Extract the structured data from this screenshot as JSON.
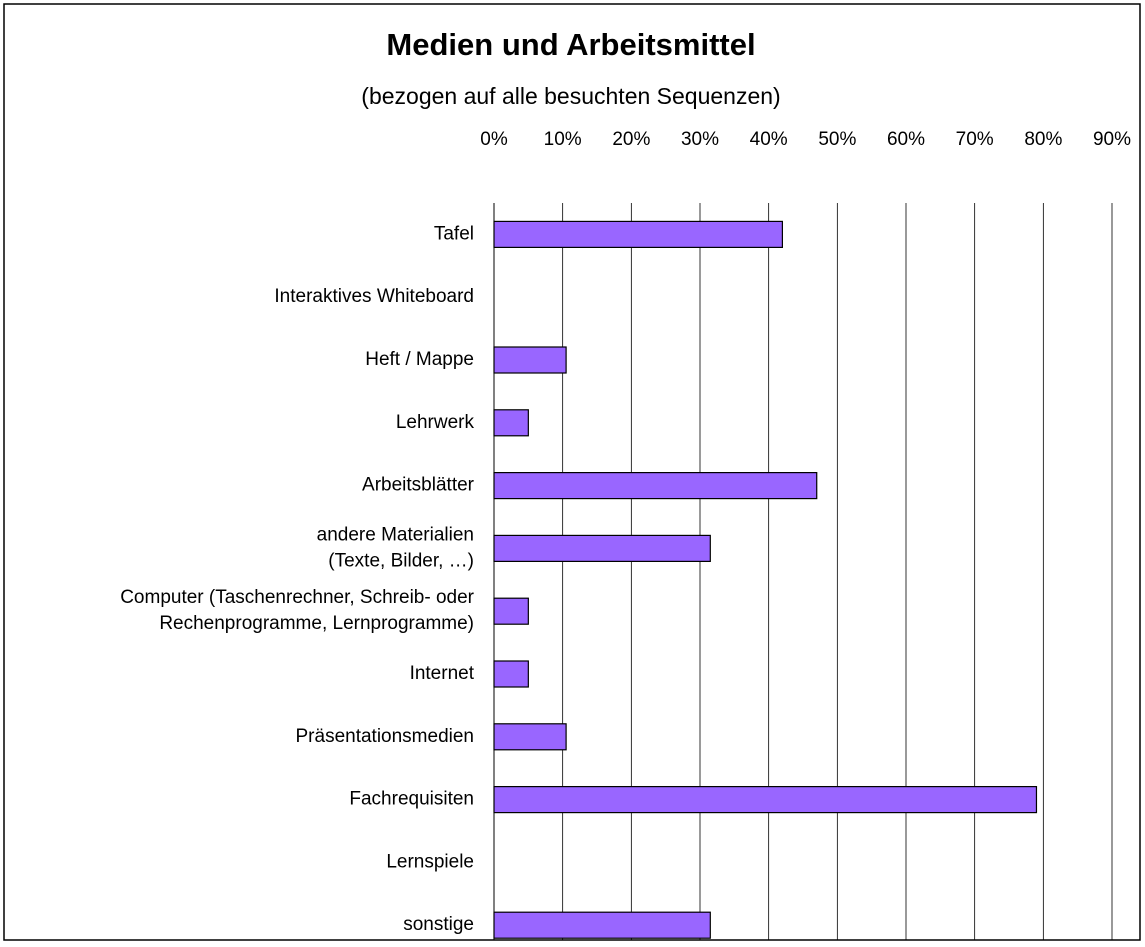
{
  "chart_data": {
    "type": "hbar",
    "title": "Medien und Arbeitsmittel",
    "subtitle": "(bezogen auf alle besuchten Sequenzen)",
    "categories": [
      "Tafel",
      "Interaktives Whiteboard",
      "Heft / Mappe",
      "Lehrwerk",
      "Arbeitsblätter",
      [
        "andere Materialien",
        "(Texte, Bilder, …)"
      ],
      [
        "Computer (Taschenrechner, Schreib- oder",
        "Rechenprogramme, Lernprogramme)"
      ],
      "Internet",
      "Präsentationsmedien",
      "Fachrequisiten",
      "Lernspiele",
      "sonstige"
    ],
    "values": [
      42,
      0,
      10.5,
      5,
      47,
      31.5,
      5,
      5,
      10.5,
      79,
      0,
      31.5
    ],
    "color": "#9966ff",
    "xlim": [
      0,
      90
    ],
    "xticks": [
      {
        "value": 0,
        "label": "0%"
      },
      {
        "value": 10,
        "label": "10%"
      },
      {
        "value": 20,
        "label": "20%"
      },
      {
        "value": 30,
        "label": "30%"
      },
      {
        "value": 40,
        "label": "40%"
      },
      {
        "value": 50,
        "label": "50%"
      },
      {
        "value": 60,
        "label": "60%"
      },
      {
        "value": 70,
        "label": "70%"
      },
      {
        "value": 80,
        "label": "80%"
      },
      {
        "value": 90,
        "label": "90%"
      }
    ],
    "grid": true
  }
}
